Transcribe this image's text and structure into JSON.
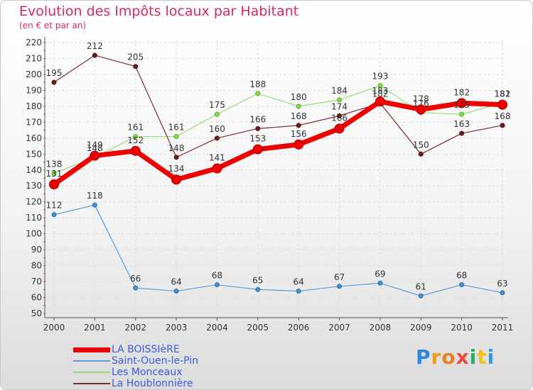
{
  "chart_data": {
    "type": "line",
    "title": "Evolution des Impôts locaux par Habitant",
    "subtitle": "(en € et par an)",
    "x": [
      "2000",
      "2001",
      "2002",
      "2003",
      "2004",
      "2005",
      "2006",
      "2007",
      "2008",
      "2009",
      "2010",
      "2011"
    ],
    "ylim": [
      50,
      220
    ],
    "yticks": [
      50,
      60,
      70,
      80,
      90,
      100,
      110,
      120,
      130,
      140,
      150,
      160,
      170,
      180,
      190,
      200,
      210,
      220
    ],
    "grid": true,
    "series": [
      {
        "name": "LA BOISSIèRE",
        "color": "#ee0000",
        "values": [
          131,
          149,
          152,
          134,
          141,
          153,
          156,
          166,
          183,
          178,
          182,
          181
        ],
        "width": 7,
        "marker_fill": "#ee0000",
        "marker_stroke": "#aa0000"
      },
      {
        "name": "Saint-Ouen-le-Pin",
        "color": "#5b9bd5",
        "values": [
          112,
          118,
          66,
          64,
          68,
          65,
          64,
          67,
          69,
          61,
          68,
          63
        ],
        "width": 1.2,
        "marker_fill": "#4a90cf",
        "marker_stroke": "#2e6da4"
      },
      {
        "name": "Les Monceaux",
        "color": "#99dd77",
        "values": [
          138,
          148,
          161,
          161,
          175,
          188,
          180,
          184,
          193,
          176,
          175,
          182
        ],
        "width": 1.2,
        "marker_fill": "#88dd44",
        "marker_stroke": "#55aa22"
      },
      {
        "name": "La Houblonnière",
        "color": "#7a2b2b",
        "values": [
          195,
          212,
          205,
          148,
          160,
          166,
          168,
          174,
          182,
          150,
          163,
          168
        ],
        "width": 1.2,
        "marker_fill": "#6b1f1f",
        "marker_stroke": "#4a1010"
      }
    ]
  },
  "brand": {
    "letters": [
      "P",
      "r",
      "o",
      "x",
      "i",
      "t",
      "i"
    ],
    "colors": [
      "#2e86de",
      "#f39c12",
      "#e67e22",
      "#e74c3c",
      "#27ae60",
      "#f1c40f",
      "#3498db"
    ]
  }
}
